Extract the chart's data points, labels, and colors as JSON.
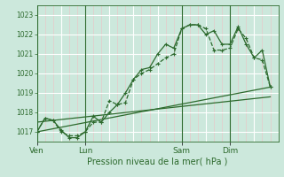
{
  "bg_color": "#cce8dc",
  "line_color": "#2d6a2d",
  "grid_major_color": "#ffffff",
  "grid_minor_v_color": "#e8c8c8",
  "grid_minor_h_color": "#e0f0e8",
  "xlabel": "Pression niveau de la mer( hPa )",
  "ylim": [
    1016.5,
    1023.5
  ],
  "yticks": [
    1017,
    1018,
    1019,
    1020,
    1021,
    1022,
    1023
  ],
  "day_labels": [
    "Ven",
    "Lun",
    "Sam",
    "Dim"
  ],
  "day_positions": [
    0,
    48,
    144,
    192
  ],
  "total_hours": 240,
  "series1": {
    "x": [
      0,
      8,
      16,
      24,
      32,
      40,
      48,
      56,
      64,
      72,
      80,
      88,
      96,
      104,
      112,
      120,
      128,
      136,
      144,
      152,
      160,
      168,
      176,
      184,
      192,
      200,
      208,
      216,
      224,
      232
    ],
    "y": [
      1017.0,
      1017.7,
      1017.6,
      1017.0,
      1016.8,
      1016.8,
      1017.0,
      1017.5,
      1017.5,
      1018.6,
      1018.4,
      1018.5,
      1019.7,
      1020.0,
      1020.2,
      1020.5,
      1020.8,
      1021.0,
      1022.3,
      1022.5,
      1022.5,
      1022.3,
      1021.2,
      1021.2,
      1021.3,
      1022.3,
      1021.8,
      1020.8,
      1020.7,
      1019.3
    ]
  },
  "series2": {
    "x": [
      0,
      8,
      16,
      24,
      32,
      40,
      48,
      56,
      64,
      72,
      80,
      88,
      96,
      104,
      112,
      120,
      128,
      136,
      144,
      152,
      160,
      168,
      176,
      184,
      192,
      200,
      208,
      216,
      224,
      232
    ],
    "y": [
      1017.0,
      1017.7,
      1017.6,
      1017.1,
      1016.7,
      1016.7,
      1017.0,
      1017.8,
      1017.5,
      1018.0,
      1018.4,
      1019.0,
      1019.7,
      1020.2,
      1020.3,
      1021.0,
      1021.5,
      1021.3,
      1022.3,
      1022.5,
      1022.5,
      1022.0,
      1022.2,
      1021.5,
      1021.5,
      1022.4,
      1021.5,
      1020.8,
      1021.2,
      1019.3
    ]
  },
  "series3_linear": {
    "x": [
      0,
      232
    ],
    "y": [
      1017.0,
      1019.3
    ]
  },
  "series4_linear": {
    "x": [
      0,
      232
    ],
    "y": [
      1017.5,
      1018.8
    ]
  }
}
